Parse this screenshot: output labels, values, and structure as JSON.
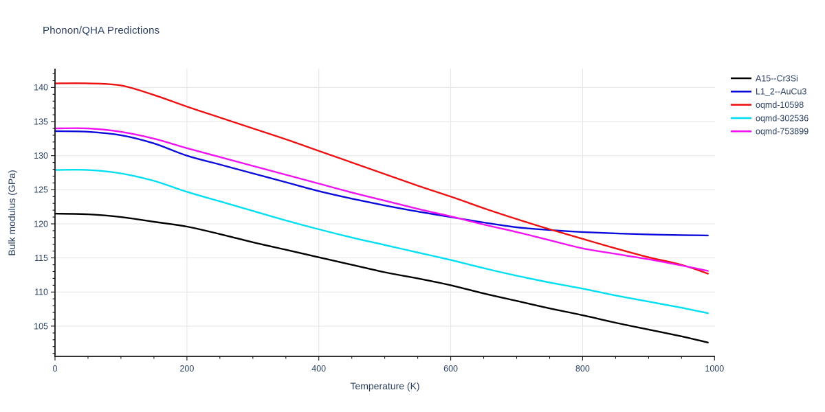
{
  "header": {
    "title": "Phonon/QHA Predictions"
  },
  "colors": {
    "title_text": "#2a3f5f",
    "tick_text": "#2a3f5f",
    "axis_title_text": "#2a3f5f",
    "legend_text": "#2a3f5f",
    "grid": "#e6e6e6",
    "axis_line": "#161616",
    "background": "#ffffff"
  },
  "chart_data": {
    "type": "line",
    "title": "Phonon/QHA Predictions",
    "xlabel": "Temperature (K)",
    "ylabel": "Bulk modulus (GPa)",
    "xlim": [
      0,
      1000
    ],
    "ylim": [
      100.5,
      142.8
    ],
    "x_ticks": [
      0,
      200,
      400,
      600,
      800,
      1000
    ],
    "y_ticks": [
      105,
      110,
      115,
      120,
      125,
      130,
      135,
      140
    ],
    "x_minor_step": 50,
    "y_minor_step": 1,
    "grid": true,
    "legend_position": "top-right-outside",
    "x": [
      0,
      50,
      100,
      150,
      200,
      250,
      300,
      350,
      400,
      450,
      500,
      550,
      600,
      650,
      700,
      750,
      800,
      850,
      900,
      950,
      990
    ],
    "series": [
      {
        "name": "A15--Cr3Si",
        "color": "#000000",
        "values": [
          121.5,
          121.4,
          121.0,
          120.3,
          119.6,
          118.5,
          117.3,
          116.2,
          115.1,
          114.0,
          112.9,
          112.0,
          111.0,
          109.8,
          108.7,
          107.6,
          106.6,
          105.5,
          104.5,
          103.5,
          102.6
        ]
      },
      {
        "name": "L1_2--AuCu3",
        "color": "#0b0bdb",
        "values": [
          133.6,
          133.5,
          133.0,
          131.8,
          130.0,
          128.7,
          127.4,
          126.1,
          124.8,
          123.7,
          122.7,
          121.8,
          121.0,
          120.2,
          119.5,
          119.1,
          118.8,
          118.6,
          118.45,
          118.35,
          118.3
        ]
      },
      {
        "name": "oqmd-10598",
        "color": "#ed1111",
        "values": [
          140.6,
          140.6,
          140.3,
          138.9,
          137.2,
          135.6,
          134.0,
          132.4,
          130.7,
          129.0,
          127.3,
          125.6,
          124.0,
          122.3,
          120.7,
          119.2,
          117.8,
          116.4,
          115.1,
          114.0,
          112.7
        ]
      },
      {
        "name": "oqmd-302536",
        "color": "#00dff2",
        "values": [
          127.9,
          127.9,
          127.4,
          126.3,
          124.7,
          123.3,
          121.9,
          120.5,
          119.2,
          118.0,
          116.9,
          115.8,
          114.7,
          113.5,
          112.4,
          111.4,
          110.5,
          109.5,
          108.6,
          107.7,
          106.9
        ]
      },
      {
        "name": "oqmd-753899",
        "color": "#f012f0",
        "values": [
          134.0,
          134.0,
          133.5,
          132.5,
          131.1,
          129.8,
          128.5,
          127.2,
          125.9,
          124.6,
          123.4,
          122.2,
          121.1,
          119.9,
          118.8,
          117.6,
          116.4,
          115.6,
          114.8,
          113.9,
          113.1
        ]
      }
    ]
  }
}
